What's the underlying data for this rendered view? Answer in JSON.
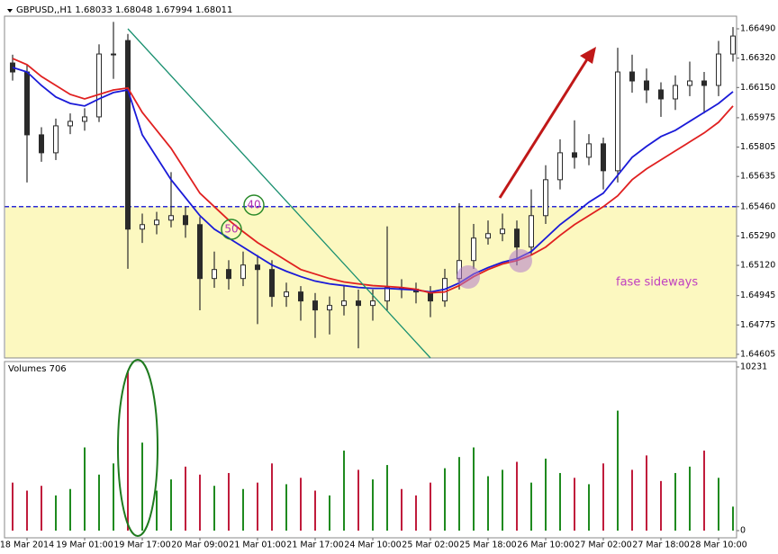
{
  "chart_data": [
    {
      "type": "candlestick",
      "title": "GBPUSD,,H1  1.68033 1.68048 1.67994 1.68011",
      "categories": [
        null,
        "18 Mar 2014",
        null,
        null,
        null,
        "19 Mar 01:00",
        null,
        null,
        null,
        "19 Mar 17:00",
        null,
        null,
        null,
        "20 Mar 09:00",
        null,
        null,
        null,
        "21 Mar 01:00",
        null,
        null,
        null,
        "21 Mar 17:00",
        null,
        null,
        null,
        "24 Mar 10:00",
        null,
        null,
        null,
        "25 Mar 02:00",
        null,
        null,
        null,
        "25 Mar 18:00",
        null,
        null,
        null,
        "26 Mar 10:00",
        null,
        null,
        null,
        "27 Mar 02:00",
        null,
        null,
        null,
        "27 Mar 18:00",
        null,
        null,
        null,
        "28 Mar 10:00",
        null
      ],
      "open": [
        1.66292,
        1.6624,
        1.65876,
        1.65772,
        1.65928,
        1.65954,
        1.6598,
        1.66344,
        1.66422,
        1.6533,
        1.65356,
        1.65382,
        1.65408,
        1.65356,
        1.65044,
        1.65096,
        1.65044,
        1.65122,
        1.65096,
        1.6494,
        1.64966,
        1.64914,
        1.64862,
        1.64888,
        1.64914,
        1.64888,
        1.64914,
        1.64992,
        1.64982,
        1.64966,
        1.64914,
        1.65044,
        1.65148,
        1.65278,
        1.65304,
        1.6533,
        1.65226,
        1.65408,
        1.65616,
        1.65772,
        1.65746,
        1.65824,
        1.65668,
        1.6624,
        1.66188,
        1.66136,
        1.66084,
        1.66162,
        1.66188,
        1.66162,
        1.66344
      ],
      "high": [
        1.6634,
        1.6628,
        1.6592,
        1.6597,
        1.66,
        1.6603,
        1.664,
        1.6653,
        1.6646,
        1.6542,
        1.6543,
        1.6566,
        1.6546,
        1.654,
        1.652,
        1.6515,
        1.652,
        1.6518,
        1.6515,
        1.6502,
        1.65,
        1.6496,
        1.6494,
        1.65,
        1.6498,
        1.6498,
        1.65346,
        1.6504,
        1.6502,
        1.65,
        1.651,
        1.6548,
        1.6536,
        1.6538,
        1.6542,
        1.6538,
        1.6556,
        1.657,
        1.6585,
        1.6596,
        1.6588,
        1.6586,
        1.6638,
        1.6634,
        1.6626,
        1.6618,
        1.6622,
        1.663,
        1.6624,
        1.6642,
        1.665
      ],
      "low": [
        1.6619,
        1.656,
        1.6572,
        1.6573,
        1.6588,
        1.659,
        1.6595,
        1.662,
        1.651,
        1.6525,
        1.653,
        1.6534,
        1.6528,
        1.6486,
        1.6499,
        1.6498,
        1.65,
        1.6478,
        1.6488,
        1.6488,
        1.648,
        1.647,
        1.6472,
        1.6483,
        1.6464,
        1.648,
        1.6486,
        1.6493,
        1.649,
        1.6482,
        1.6488,
        1.6498,
        1.651,
        1.6524,
        1.6526,
        1.6512,
        1.6518,
        1.6536,
        1.6556,
        1.6568,
        1.657,
        1.6556,
        1.656,
        1.6612,
        1.6606,
        1.6598,
        1.6602,
        1.661,
        1.66,
        1.661,
        1.663
      ],
      "close": [
        1.6624,
        1.65876,
        1.65772,
        1.65928,
        1.65954,
        1.6598,
        1.66344,
        1.66344,
        1.6533,
        1.65356,
        1.65382,
        1.65408,
        1.65356,
        1.65044,
        1.65096,
        1.65044,
        1.65122,
        1.65096,
        1.6494,
        1.64966,
        1.64914,
        1.64862,
        1.64888,
        1.64914,
        1.64888,
        1.64914,
        1.64992,
        1.64982,
        1.64966,
        1.64914,
        1.65044,
        1.65148,
        1.65278,
        1.65304,
        1.6533,
        1.65226,
        1.65408,
        1.65616,
        1.65772,
        1.65746,
        1.65824,
        1.65668,
        1.6624,
        1.66188,
        1.66136,
        1.66084,
        1.66162,
        1.66188,
        1.66162,
        1.66344,
        1.66448
      ],
      "candle_color": "#2a2a2a",
      "overlays": [
        {
          "color": "#1a1ad8",
          "values": [
            1.66266,
            1.6624,
            1.66162,
            1.66095,
            1.66058,
            1.66043,
            1.66084,
            1.66121,
            1.66136,
            1.65876,
            1.65746,
            1.65616,
            1.65512,
            1.65408,
            1.6533,
            1.65278,
            1.65226,
            1.65174,
            1.65122,
            1.65086,
            1.65055,
            1.65029,
            1.65013,
            1.65003,
            1.64992,
            1.64987,
            1.64987,
            1.64982,
            1.64977,
            1.64966,
            1.64982,
            1.65018,
            1.6507,
            1.65107,
            1.65138,
            1.65159,
            1.652,
            1.65278,
            1.65356,
            1.65419,
            1.65486,
            1.65538,
            1.65642,
            1.65746,
            1.65809,
            1.65866,
            1.65902,
            1.65954,
            1.66006,
            1.66058,
            1.66126
          ]
        },
        {
          "color": "#e02020",
          "values": [
            1.66318,
            1.66282,
            1.66214,
            1.66162,
            1.6611,
            1.66084,
            1.6611,
            1.66136,
            1.66147,
            1.66006,
            1.65902,
            1.65798,
            1.65668,
            1.65538,
            1.6546,
            1.65382,
            1.65315,
            1.65252,
            1.652,
            1.65148,
            1.65096,
            1.6507,
            1.65044,
            1.65024,
            1.65013,
            1.65003,
            1.64998,
            1.64992,
            1.64982,
            1.64961,
            1.64966,
            1.65003,
            1.65055,
            1.65096,
            1.65128,
            1.65148,
            1.6518,
            1.65226,
            1.65294,
            1.65356,
            1.65408,
            1.6546,
            1.65523,
            1.65616,
            1.65679,
            1.65731,
            1.65783,
            1.65835,
            1.65887,
            1.65949,
            1.66043
          ]
        }
      ],
      "hline": 1.6546,
      "hline_color": "#2b2bd8",
      "zone_color": "#fcf8c0",
      "ylim": [
        1.64584,
        1.66563
      ],
      "yticks": [
        {
          "value": 1.6649,
          "label": "1.66490"
        },
        {
          "value": 1.6632,
          "label": "1.66320"
        },
        {
          "value": 1.6615,
          "label": "1.66150"
        },
        {
          "value": 1.65975,
          "label": "1.65975"
        },
        {
          "value": 1.65805,
          "label": "1.65805"
        },
        {
          "value": 1.65635,
          "label": "1.65635"
        },
        {
          "value": 1.6546,
          "label": "1.65460"
        },
        {
          "value": 1.6529,
          "label": "1.65290"
        },
        {
          "value": 1.6512,
          "label": "1.65120"
        },
        {
          "value": 1.64945,
          "label": "1.64945"
        },
        {
          "value": 1.64775,
          "label": "1.64775"
        },
        {
          "value": 1.64605,
          "label": "1.64605"
        }
      ],
      "annotations": [
        "fase sideways",
        "40",
        "50"
      ]
    },
    {
      "type": "bar",
      "title": "Volumes 706",
      "values": [
        3000,
        2500,
        2800,
        2200,
        2600,
        5200,
        3500,
        4200,
        10000,
        5500,
        2500,
        3200,
        4000,
        3500,
        2800,
        3600,
        2600,
        3000,
        4200,
        2900,
        3300,
        2500,
        2200,
        5000,
        3800,
        3200,
        4100,
        2600,
        2200,
        3000,
        3900,
        4600,
        5200,
        3400,
        3800,
        4300,
        3000,
        4500,
        3600,
        3300,
        2900,
        4200,
        7500,
        3800,
        4700,
        3100,
        3600,
        4000,
        5000,
        3300,
        1500
      ],
      "up_color": "#1f8a1f",
      "down_color": "#c01c3c",
      "ylim": [
        0,
        10231
      ],
      "yticks": [
        0,
        10231
      ]
    }
  ]
}
